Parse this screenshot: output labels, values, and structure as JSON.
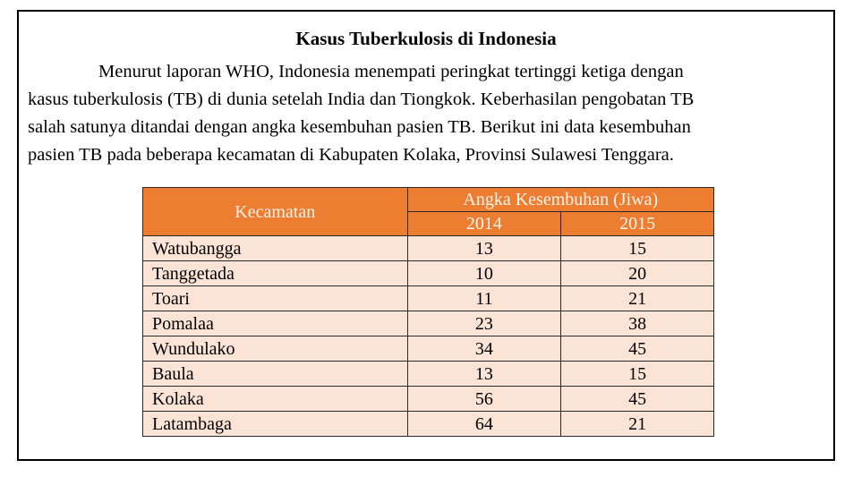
{
  "document": {
    "title": "Kasus Tuberkulosis di Indonesia",
    "paragraph_lines": [
      "Menurut laporan WHO, Indonesia menempati peringkat tertinggi ketiga dengan",
      "kasus tuberkulosis (TB) di dunia setelah India dan Tiongkok. Keberhasilan pengobatan TB",
      "salah satunya ditandai dengan angka kesembuhan pasien TB. Berikut ini data kesembuhan",
      "pasien TB pada beberapa kecamatan di Kabupaten Kolaka, Provinsi Sulawesi Tenggara."
    ]
  },
  "table": {
    "header_kecamatan": "Kecamatan",
    "header_group": "Angka Kesembuhan (Jiwa)",
    "years": [
      "2014",
      "2015"
    ],
    "rows": [
      {
        "kecamatan": "Watubangga",
        "y2014": "13",
        "y2015": "15"
      },
      {
        "kecamatan": "Tanggetada",
        "y2014": "10",
        "y2015": "20"
      },
      {
        "kecamatan": "Toari",
        "y2014": "11",
        "y2015": "21"
      },
      {
        "kecamatan": "Pomalaa",
        "y2014": "23",
        "y2015": "38"
      },
      {
        "kecamatan": "Wundulako",
        "y2014": "34",
        "y2015": "45"
      },
      {
        "kecamatan": "Baula",
        "y2014": "13",
        "y2015": "15"
      },
      {
        "kecamatan": "Kolaka",
        "y2014": "56",
        "y2015": "45"
      },
      {
        "kecamatan": "Latambaga",
        "y2014": "64",
        "y2015": "21"
      }
    ]
  },
  "colors": {
    "header_fill": "#ed7d31",
    "row_fill": "#fbe3d6",
    "border": "#000000"
  }
}
